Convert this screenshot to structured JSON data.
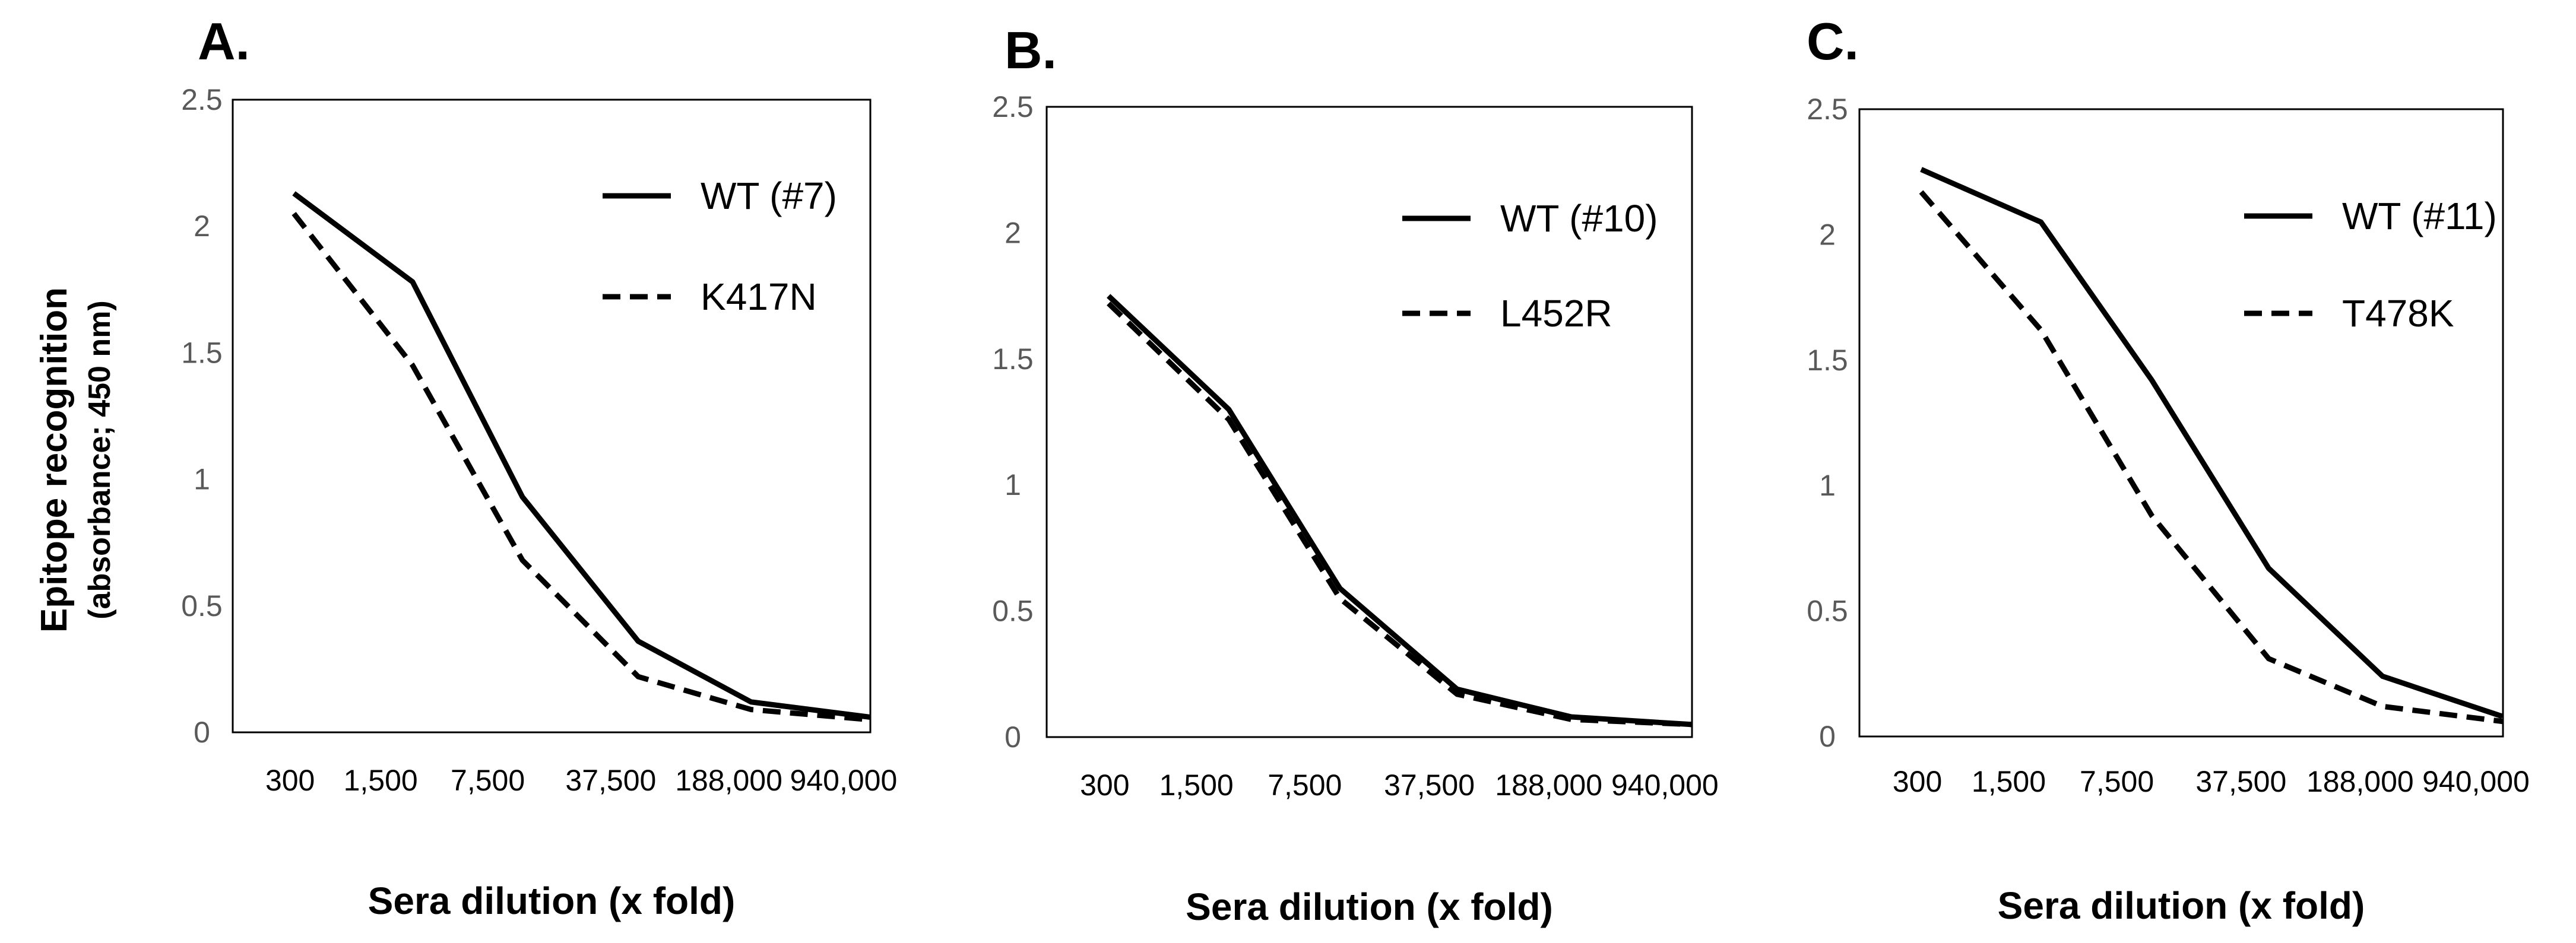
{
  "y_title": "Epitope recognition",
  "y_subtitle": "(absorbance; 450 nm)",
  "chart_data": [
    {
      "type": "line",
      "panel": "A.",
      "categories": [
        "300",
        "1,500",
        "7,500",
        "37,500",
        "188,000",
        "940,000"
      ],
      "xlabel": "Sera dilution (x fold)",
      "ylim": [
        0,
        2.5
      ],
      "yticks": [
        "0",
        "0.5",
        "1",
        "1.5",
        "2",
        "2.5"
      ],
      "series": [
        {
          "name": "WT (#7)",
          "style": "solid",
          "values": [
            2.13,
            1.78,
            0.93,
            0.36,
            0.12,
            0.06
          ]
        },
        {
          "name": "K417N",
          "style": "dashed",
          "values": [
            2.05,
            1.45,
            0.68,
            0.22,
            0.09,
            0.05
          ]
        }
      ]
    },
    {
      "type": "line",
      "panel": "B.",
      "categories": [
        "300",
        "1,500",
        "7,500",
        "37,500",
        "188,000",
        "940,000"
      ],
      "xlabel": "Sera dilution (x fold)",
      "ylim": [
        0,
        2.5
      ],
      "yticks": [
        "0",
        "0.5",
        "1",
        "1.5",
        "2",
        "2.5"
      ],
      "series": [
        {
          "name": "WT (#10)",
          "style": "solid",
          "values": [
            1.75,
            1.3,
            0.59,
            0.19,
            0.08,
            0.05
          ]
        },
        {
          "name": "L452R",
          "style": "dashed",
          "values": [
            1.72,
            1.26,
            0.55,
            0.17,
            0.07,
            0.05
          ]
        }
      ]
    },
    {
      "type": "line",
      "panel": "C.",
      "categories": [
        "300",
        "1,500",
        "7,500",
        "37,500",
        "188,000",
        "940,000"
      ],
      "xlabel": "Sera dilution (x fold)",
      "ylim": [
        0,
        2.5
      ],
      "yticks": [
        "0",
        "0.5",
        "1",
        "1.5",
        "2",
        "2.5"
      ],
      "series": [
        {
          "name": "WT (#11)",
          "style": "solid",
          "values": [
            2.26,
            2.05,
            1.42,
            0.67,
            0.24,
            0.08
          ]
        },
        {
          "name": "T478K",
          "style": "dashed",
          "values": [
            2.17,
            1.62,
            0.88,
            0.31,
            0.12,
            0.06
          ]
        }
      ]
    }
  ]
}
